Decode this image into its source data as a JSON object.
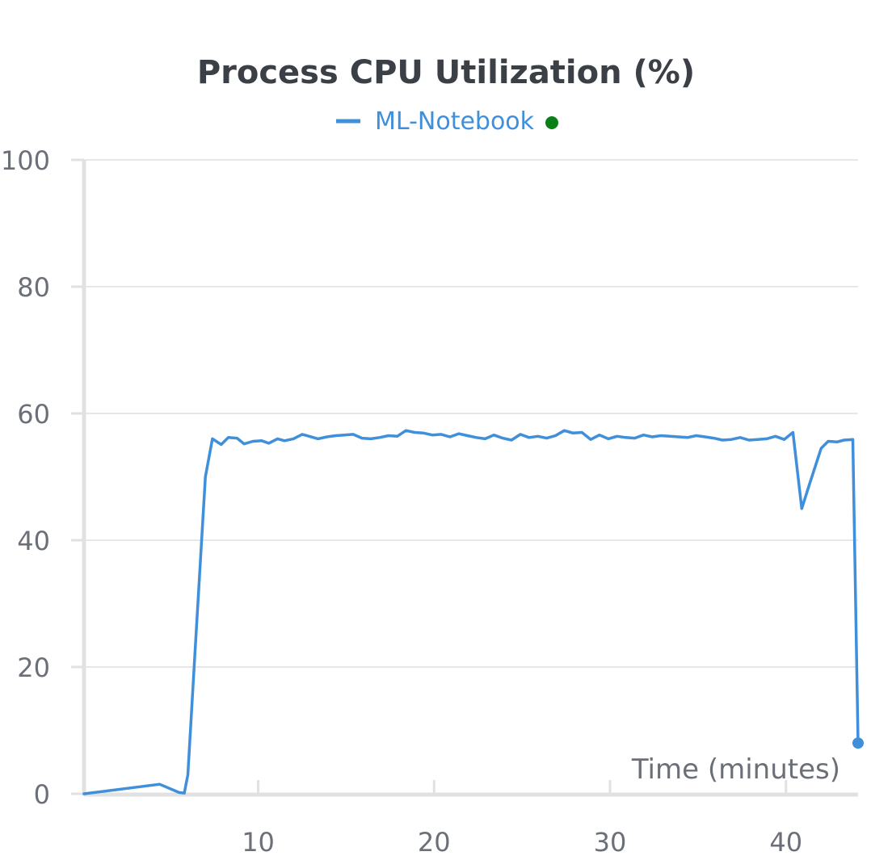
{
  "colors": {
    "series": "#3f8fdb",
    "legend_dot": "#0a7f16",
    "grid": "#e6e7ea",
    "axis": "#e1e1e1",
    "text": "#3b3f46",
    "ticks": "#6b6f78"
  },
  "chart_data": {
    "type": "line",
    "title": "Process CPU Utilization (%)",
    "xlabel": "Time (minutes)",
    "ylabel": "",
    "xlim": [
      0.1,
      44.1
    ],
    "ylim": [
      0,
      100
    ],
    "xticks": [
      10,
      20,
      30,
      40
    ],
    "yticks": [
      0,
      20,
      40,
      60,
      80,
      100
    ],
    "grid": true,
    "legend": "top-center",
    "series": [
      {
        "name": "ML-Notebook",
        "x": [
          0.1,
          4.4,
          5.5,
          5.8,
          6.0,
          6.4,
          7.0,
          7.4,
          7.9,
          8.3,
          8.8,
          9.2,
          9.7,
          10.2,
          10.6,
          11.1,
          11.5,
          12.0,
          12.5,
          12.9,
          13.4,
          13.9,
          14.4,
          14.9,
          15.4,
          15.9,
          16.4,
          16.9,
          17.4,
          17.9,
          18.4,
          18.9,
          19.4,
          19.9,
          20.4,
          20.9,
          21.4,
          21.9,
          22.4,
          22.9,
          23.4,
          23.9,
          24.4,
          24.9,
          25.4,
          25.9,
          26.4,
          26.9,
          27.4,
          27.9,
          28.4,
          28.9,
          29.4,
          29.9,
          30.4,
          30.9,
          31.4,
          31.9,
          32.4,
          32.9,
          33.4,
          33.9,
          34.4,
          34.9,
          35.4,
          35.9,
          36.4,
          36.9,
          37.4,
          37.9,
          38.4,
          38.9,
          39.4,
          39.9,
          40.4,
          40.9,
          41.3,
          42.0,
          42.4,
          42.9,
          43.3,
          43.8,
          44.1
        ],
        "values": [
          0,
          1.5,
          0.2,
          0.1,
          3.0,
          22.0,
          50.0,
          56.0,
          55.1,
          56.2,
          56.1,
          55.2,
          55.6,
          55.7,
          55.3,
          56.0,
          55.7,
          56.0,
          56.7,
          56.4,
          56.0,
          56.3,
          56.5,
          56.6,
          56.7,
          56.1,
          56.0,
          56.2,
          56.5,
          56.4,
          57.3,
          57.0,
          56.9,
          56.6,
          56.7,
          56.3,
          56.8,
          56.5,
          56.2,
          56.0,
          56.6,
          56.1,
          55.8,
          56.7,
          56.2,
          56.4,
          56.1,
          56.5,
          57.3,
          56.9,
          57.0,
          55.9,
          56.6,
          56.0,
          56.4,
          56.2,
          56.1,
          56.6,
          56.3,
          56.5,
          56.4,
          56.3,
          56.2,
          56.5,
          56.3,
          56.1,
          55.8,
          55.9,
          56.2,
          55.8,
          55.9,
          56.0,
          56.4,
          55.9,
          57.0,
          45.0,
          48.5,
          54.5,
          55.6,
          55.5,
          55.8,
          55.9,
          8.0
        ]
      }
    ]
  }
}
